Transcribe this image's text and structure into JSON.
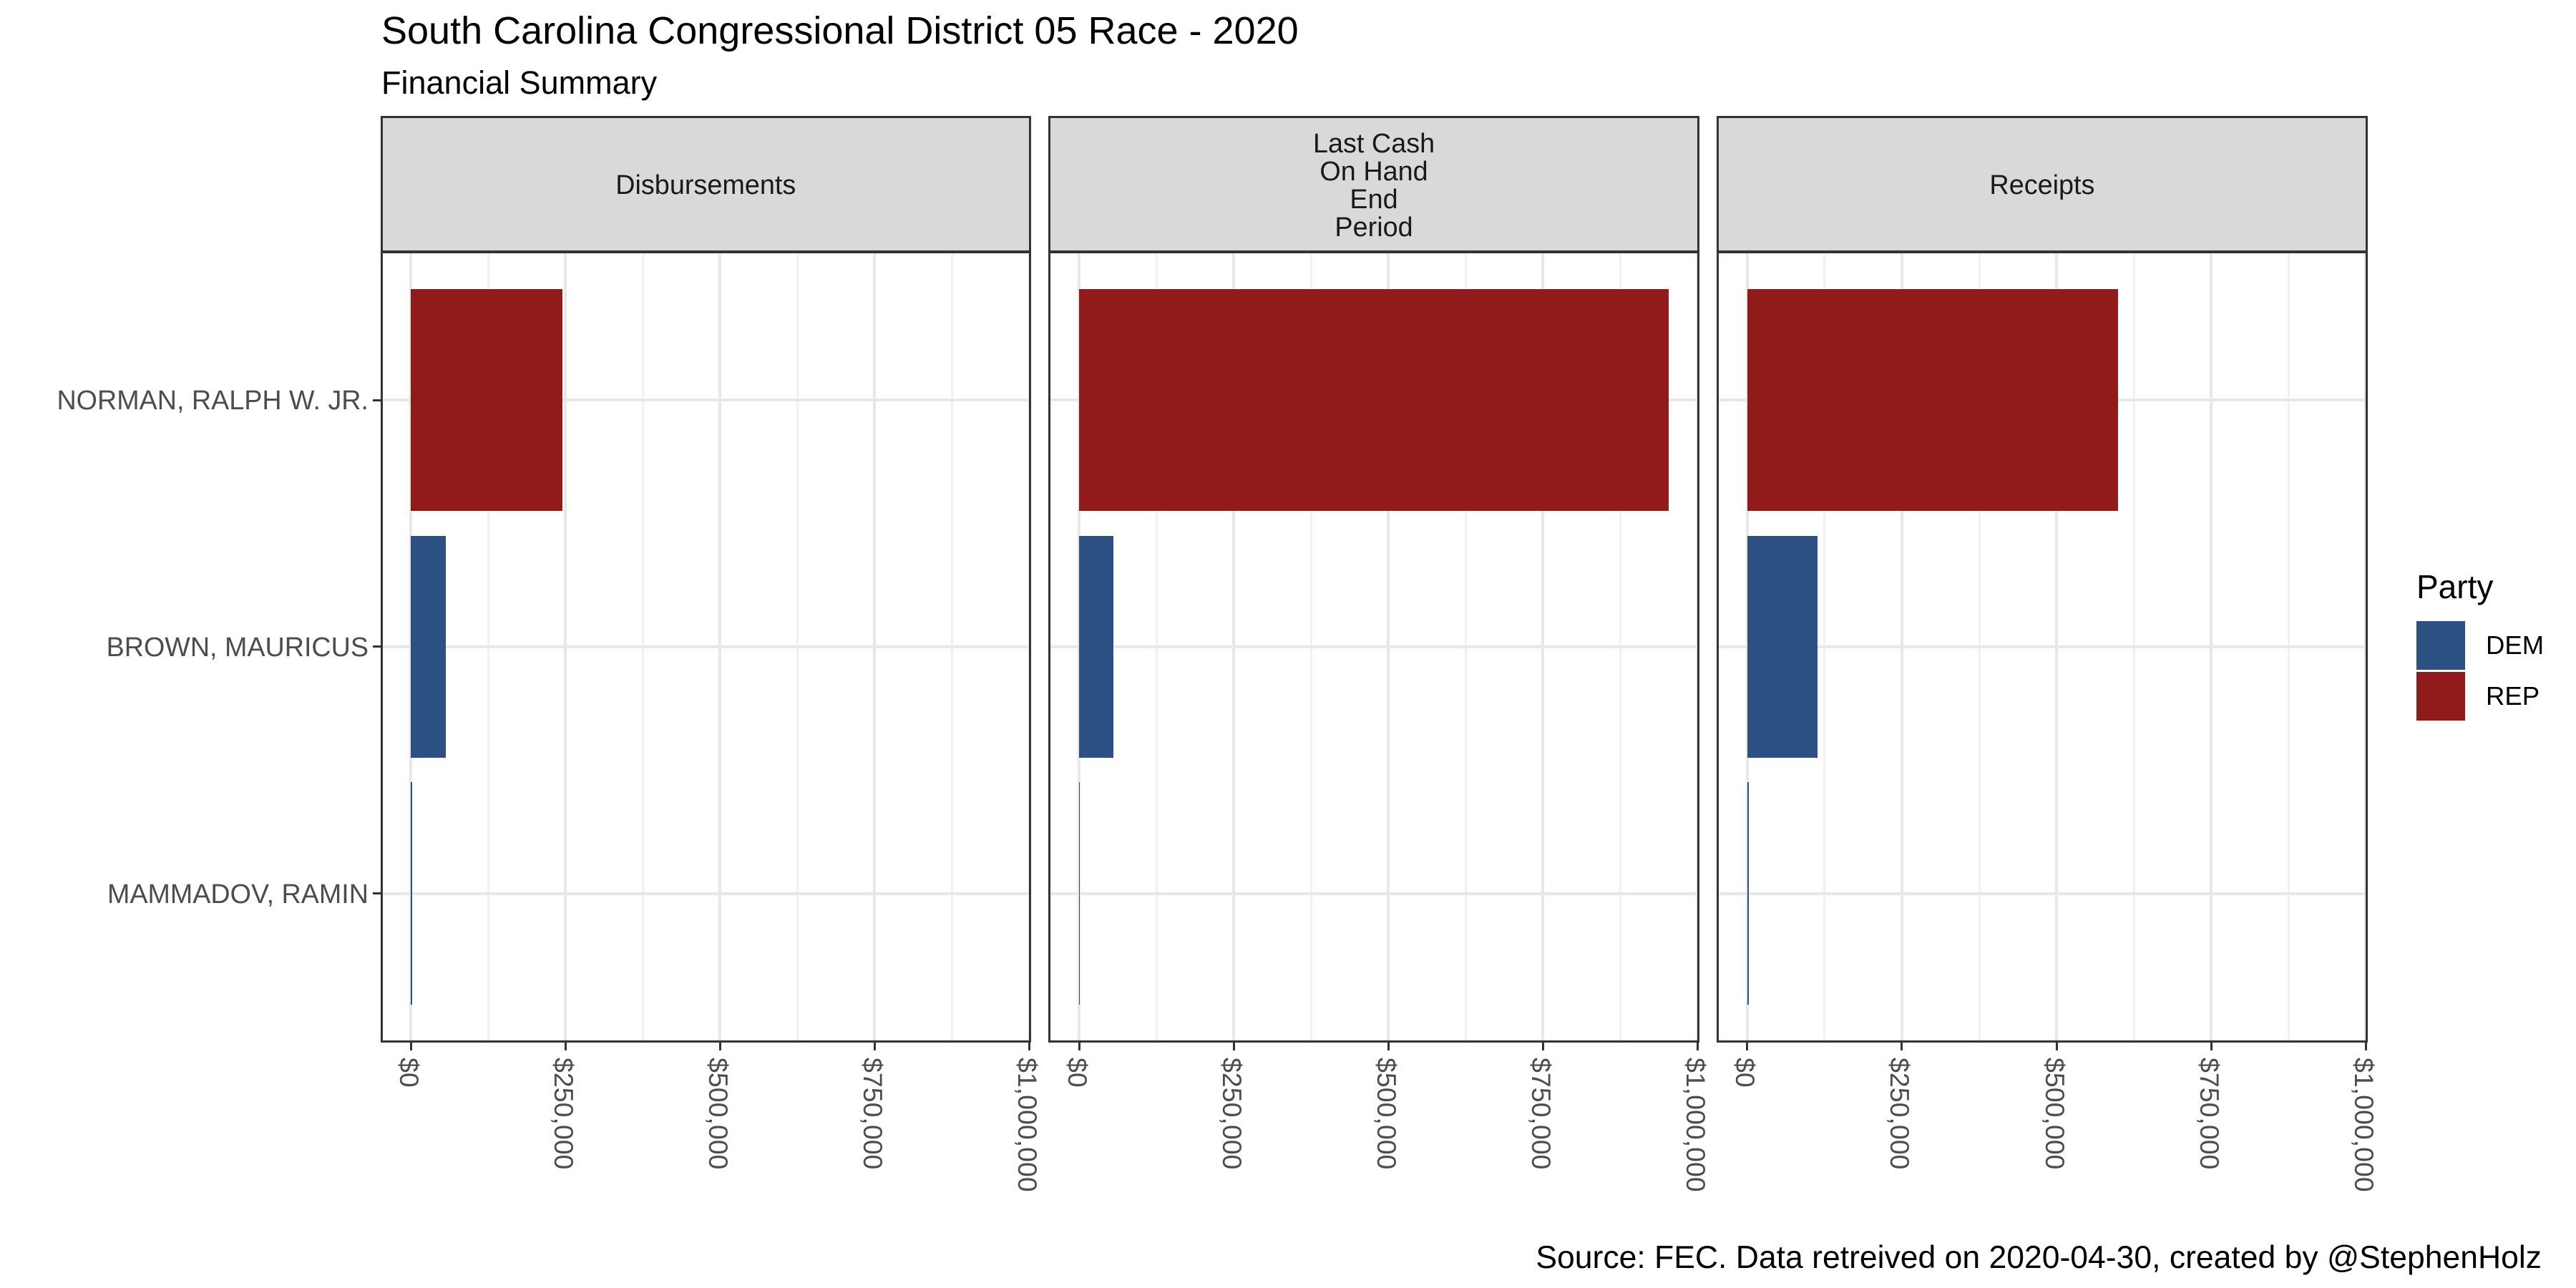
{
  "title": "South Carolina Congressional District 05 Race - 2020",
  "subtitle": "Financial Summary",
  "caption": "Source: FEC. Data retreived on 2020-04-30, created by @StephenHolz",
  "legend": {
    "title": "Party",
    "entries": [
      {
        "label": "DEM",
        "color": "#2D5083"
      },
      {
        "label": "REP",
        "color": "#911B1B"
      }
    ]
  },
  "chart_data": {
    "type": "bar",
    "orientation": "horizontal",
    "title": "South Carolina Congressional District 05 Race - 2020",
    "subtitle": "Financial Summary",
    "categories": [
      "NORMAN, RALPH W. JR.",
      "BROWN, MAURICUS",
      "MAMMADOV, RAMIN"
    ],
    "category_parties": [
      "REP",
      "DEM",
      "DEM"
    ],
    "party_colors": {
      "DEM": "#2D5083",
      "REP": "#911B1B"
    },
    "facets": [
      {
        "label": "Disbursements",
        "values": [
          245000,
          56500,
          2500
        ]
      },
      {
        "label": "Last Cash\nOn Hand\nEnd\nPeriod",
        "values": [
          953500,
          55000,
          1600
        ]
      },
      {
        "label": "Receipts",
        "values": [
          600000,
          113000,
          2800
        ]
      }
    ],
    "xlim": [
      0,
      1000000
    ],
    "x_expansion_mult": 0.05,
    "x_ticks": [
      {
        "value": 0,
        "label": "$0"
      },
      {
        "value": 250000,
        "label": "$250,000"
      },
      {
        "value": 500000,
        "label": "$500,000"
      },
      {
        "value": 750000,
        "label": "$750,000"
      },
      {
        "value": 1000000,
        "label": "$1,000,000"
      }
    ],
    "x_minor_ticks": [
      125000,
      375000,
      625000,
      875000
    ],
    "grid": true,
    "legend_position": "right",
    "legend_title": "Party"
  },
  "theme": {
    "panel_background": "#FFFFFF",
    "panel_border": "#333333",
    "grid_major": "#E8E8E8",
    "grid_minor": "#F1F1F1",
    "strip_background": "#D9D9D9",
    "strip_text": "#1A1A1A",
    "axis_text": "#4D4D4D",
    "tick_color": "#333333",
    "text_color": "#000000"
  }
}
